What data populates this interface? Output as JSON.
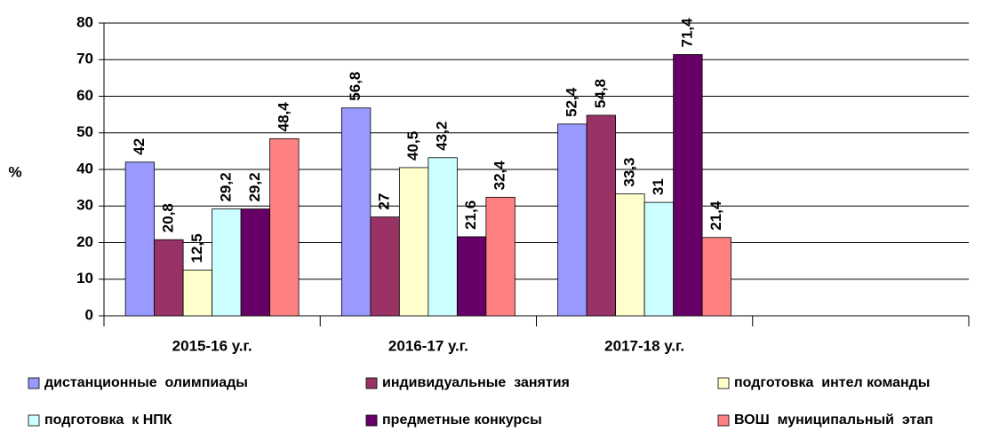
{
  "chart_data": {
    "type": "bar",
    "categories": [
      "2015-16 у.г.",
      "2016-17 у.г.",
      "2017-18 у.г.",
      null
    ],
    "y_label": "%",
    "ylim": [
      0,
      80
    ],
    "yticks": [
      0,
      10,
      20,
      30,
      40,
      50,
      60,
      70,
      80
    ],
    "grid": true,
    "legend": "bottom",
    "series": [
      {
        "name": "дистанционные  олимпиады",
        "color": "#9999ff",
        "values": [
          42,
          56.8,
          52.4,
          null
        ],
        "value_labels": [
          "42",
          "56,8",
          "52,4",
          null
        ]
      },
      {
        "name": "индивидуальные  занятия",
        "color": "#993366",
        "values": [
          20.8,
          27,
          54.8,
          null
        ],
        "value_labels": [
          "20,8",
          "27",
          "54,8",
          null
        ]
      },
      {
        "name": "подготовка  интел команды",
        "color": "#ffffcc",
        "values": [
          12.5,
          40.5,
          33.3,
          null
        ],
        "value_labels": [
          "12,5",
          "40,5",
          "33,3",
          null
        ]
      },
      {
        "name": "подготовка  к НПК",
        "color": "#ccffff",
        "values": [
          29.2,
          43.2,
          31,
          null
        ],
        "value_labels": [
          "29,2",
          "43,2",
          "31",
          null
        ]
      },
      {
        "name": "предметные конкурсы",
        "color": "#660066",
        "values": [
          29.2,
          21.6,
          71.4,
          null
        ],
        "value_labels": [
          "29,2",
          "21,6",
          "71,4",
          null
        ]
      },
      {
        "name": "ВОШ  муниципальный  этап",
        "color": "#ff8080",
        "values": [
          48.4,
          32.4,
          21.4,
          null
        ],
        "value_labels": [
          "48,4",
          "32,4",
          "21,4",
          null
        ]
      }
    ]
  }
}
